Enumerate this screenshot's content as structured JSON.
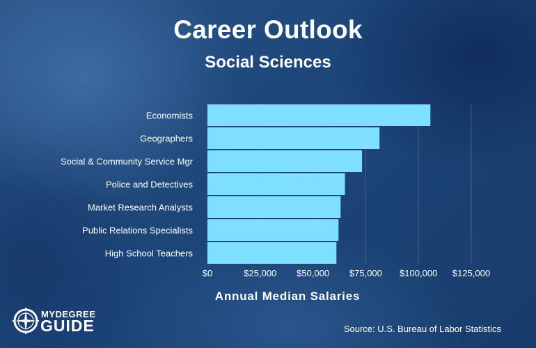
{
  "header": {
    "title": "Career Outlook",
    "subtitle": "Social Sciences"
  },
  "chart_data": {
    "type": "bar",
    "orientation": "horizontal",
    "categories": [
      "Economists",
      "Geographers",
      "Social & Community Service Mgr",
      "Police and Detectives",
      "Market Research Analysts",
      "Public Relations Specialists",
      "High School Teachers"
    ],
    "values": [
      105630,
      81540,
      73240,
      65170,
      63090,
      62100,
      61110
    ],
    "xlabel": "Annual Median Salaries",
    "xlim": [
      0,
      125000
    ],
    "xticks": [
      0,
      25000,
      50000,
      75000,
      100000,
      125000
    ],
    "xtick_labels": [
      "$0",
      "$25,000",
      "$50,000",
      "$75,000",
      "$100,000",
      "$125,000"
    ],
    "grid": true,
    "bar_color": "#7fdfff"
  },
  "footer": {
    "source": "Source: U.S. Bureau of Labor Statistics",
    "logo_top": "MYDEGREE",
    "logo_bottom": "GUIDE"
  }
}
